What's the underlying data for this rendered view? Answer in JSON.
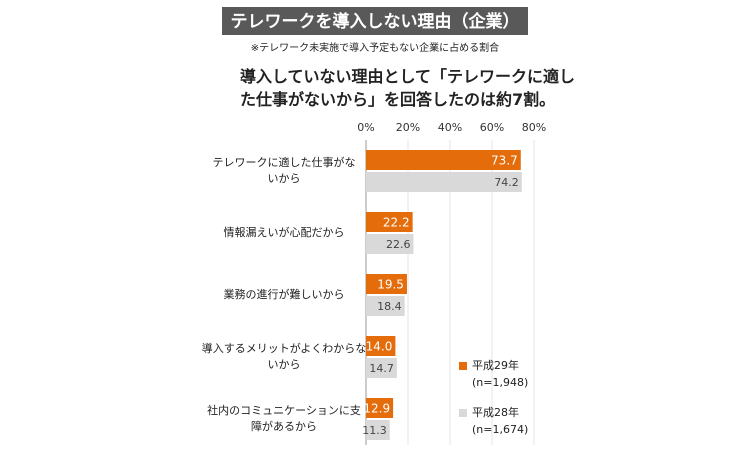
{
  "chart_data": {
    "type": "barh",
    "title": "テレワークを導入しない理由（企業）",
    "subtitle": "※テレワーク未実施で導入予定もない企業に占める割合",
    "annotation": "導入していない理由として「テレワークに適し\nた仕事がないから」を回答したのは約7割。",
    "categories": [
      "テレワークに適した仕事がな\nいから",
      "情報漏えいが心配だから",
      "業務の進行が難しいから",
      "導入するメリットがよくわからな\nいから",
      "社内のコミュニケーションに支\n障があるから"
    ],
    "series": [
      {
        "name": "平成29年\n(n=1,948)",
        "color": "#e46c0a",
        "values": [
          73.7,
          22.2,
          19.5,
          14.0,
          12.9
        ],
        "value_labels": [
          "73.7",
          "22.2",
          "19.5",
          "14.0",
          "12.9"
        ]
      },
      {
        "name": "平成28年\n(n=1,674)",
        "color": "#d9d9d9",
        "values": [
          74.2,
          22.6,
          18.4,
          14.7,
          11.3
        ]
      }
    ],
    "xlim": [
      0,
      80
    ],
    "xticks": [
      {
        "value": 0,
        "label": "0%"
      },
      {
        "value": 20,
        "label": "20%"
      },
      {
        "value": 40,
        "label": "40%"
      },
      {
        "value": 60,
        "label": "60%"
      },
      {
        "value": 80,
        "label": "80%"
      }
    ],
    "grid": true
  }
}
